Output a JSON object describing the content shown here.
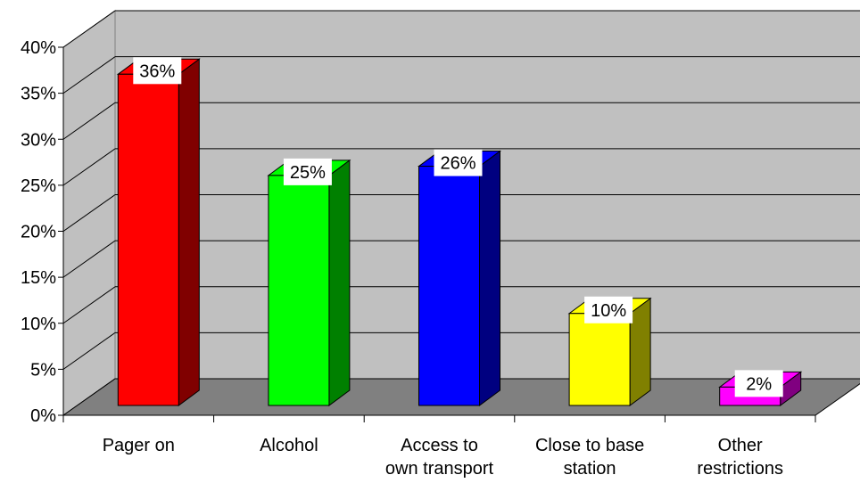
{
  "chart_data": {
    "type": "bar",
    "style": "3d-column",
    "categories": [
      [
        "Pager on"
      ],
      [
        "Alcohol"
      ],
      [
        "Access to",
        "own transport"
      ],
      [
        "Close to base",
        "station"
      ],
      [
        "Other",
        "restrictions"
      ]
    ],
    "values": [
      36,
      25,
      26,
      10,
      2
    ],
    "data_labels": [
      "36%",
      "25%",
      "26%",
      "10%",
      "2%"
    ],
    "bar_colors": [
      {
        "front": "#ff0000",
        "side": "#800000"
      },
      {
        "front": "#00ff00",
        "side": "#008000"
      },
      {
        "front": "#0000ff",
        "side": "#000080"
      },
      {
        "front": "#ffff00",
        "side": "#808000"
      },
      {
        "front": "#ff00ff",
        "side": "#800080"
      }
    ],
    "ylim": [
      0,
      40
    ],
    "y_ticks": [
      0,
      5,
      10,
      15,
      20,
      25,
      30,
      35,
      40
    ],
    "y_tick_labels": [
      "0%",
      "5%",
      "10%",
      "15%",
      "20%",
      "25%",
      "30%",
      "35%",
      "40%"
    ],
    "grid": true,
    "legend": "none",
    "wall_color": "#c0c0c0",
    "floor_color": "#808080"
  }
}
